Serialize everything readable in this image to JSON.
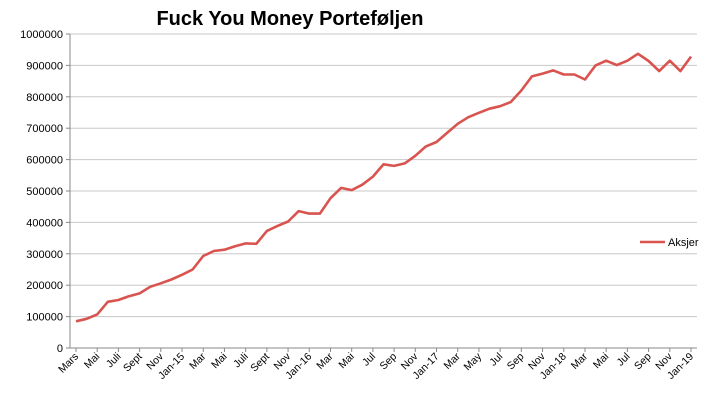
{
  "chart_data": {
    "type": "line",
    "title": "Fuck You Money Porteføljen",
    "xlabel": "",
    "ylabel": "",
    "ylim": [
      0,
      1000000
    ],
    "yticks": [
      0,
      100000,
      200000,
      300000,
      400000,
      500000,
      600000,
      700000,
      800000,
      900000,
      1000000
    ],
    "ytick_labels": [
      "0",
      "100000",
      "200000",
      "300000",
      "400000",
      "500000",
      "600000",
      "700000",
      "800000",
      "900000",
      "1000000"
    ],
    "grid": "horizontal",
    "legend": "right",
    "line_color": "#d9534f",
    "x_tick_labels": [
      "Mars",
      "Mai",
      "Juli",
      "Sept",
      "Nov",
      "Jan-15",
      "Mar",
      "Mai",
      "Juli",
      "Sept",
      "Nov",
      "Jan-16",
      "Mar",
      "Mai",
      "Jul",
      "Sep",
      "Nov",
      "Jan-17",
      "Mar",
      "May",
      "Jul",
      "Sep",
      "Nov",
      "Jan-18",
      "Mar",
      "Mai",
      "Jul",
      "Sep",
      "Nov",
      "Jan-19"
    ],
    "series": [
      {
        "name": "Aksjer",
        "values": [
          85000,
          93000,
          107000,
          147000,
          153000,
          165000,
          174000,
          195000,
          206000,
          218000,
          233000,
          250000,
          293000,
          309000,
          313000,
          324000,
          333000,
          332000,
          373000,
          389000,
          403000,
          436000,
          428000,
          428000,
          477000,
          510000,
          503000,
          520000,
          546000,
          585000,
          580000,
          588000,
          612000,
          642000,
          656000,
          685000,
          714000,
          735000,
          749000,
          762000,
          770000,
          783000,
          820000,
          865000,
          874000,
          884000,
          871000,
          871000,
          855000,
          900000,
          915000,
          901000,
          915000,
          937000,
          914000,
          882000,
          915000,
          882000,
          928000
        ]
      }
    ]
  }
}
